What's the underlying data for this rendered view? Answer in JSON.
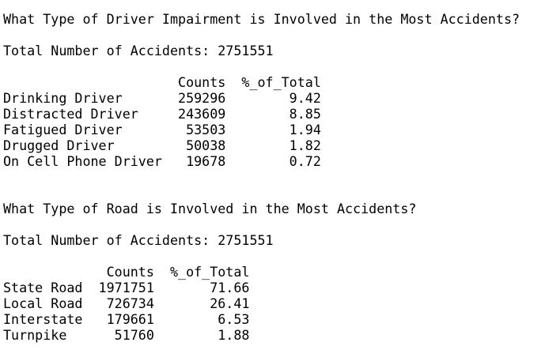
{
  "section1": {
    "question": "What Type of Driver Impairment is Involved in the Most Accidents?",
    "total_line": "Total Number of Accidents: 2751551",
    "columns": [
      "Counts",
      "%_of_Total"
    ],
    "rows": [
      {
        "label": "Drinking Driver",
        "count": "259296",
        "pct": "9.42"
      },
      {
        "label": "Distracted Driver",
        "count": "243609",
        "pct": "8.85"
      },
      {
        "label": "Fatigued Driver",
        "count": "53503",
        "pct": "1.94"
      },
      {
        "label": "Drugged Driver",
        "count": "50038",
        "pct": "1.82"
      },
      {
        "label": "On Cell Phone Driver",
        "count": "19678",
        "pct": "0.72"
      }
    ]
  },
  "section2": {
    "question": "What Type of Road is Involved in the Most Accidents?",
    "total_line": "Total Number of Accidents: 2751551",
    "columns": [
      "Counts",
      "%_of_Total"
    ],
    "rows": [
      {
        "label": "State Road",
        "count": "1971751",
        "pct": "71.66"
      },
      {
        "label": "Local Road",
        "count": "726734",
        "pct": "26.41"
      },
      {
        "label": "Interstate",
        "count": "179661",
        "pct": "6.53"
      },
      {
        "label": "Turnpike",
        "count": "51760",
        "pct": "1.88"
      }
    ]
  }
}
